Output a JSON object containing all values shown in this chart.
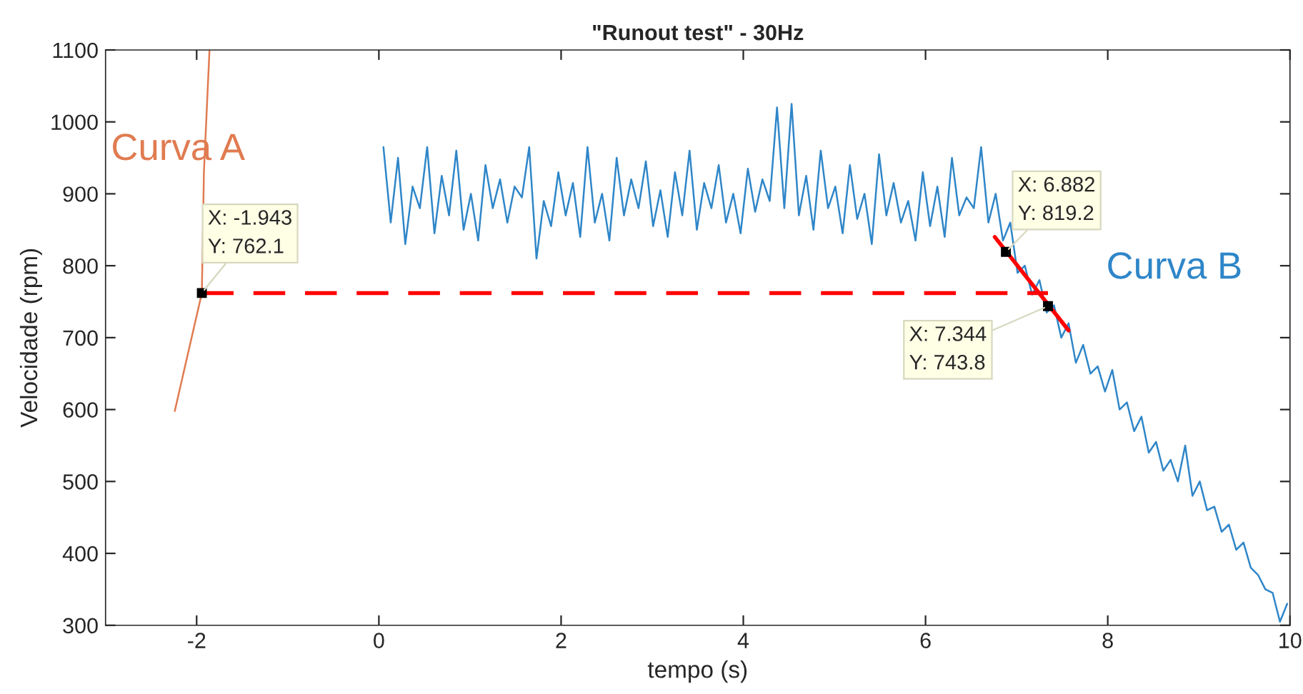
{
  "chart_data": {
    "type": "line",
    "title": "\"Runout test\" - 30Hz",
    "xlabel": "tempo (s)",
    "ylabel": "Velocidade (rpm)",
    "xlim": [
      -3,
      10
    ],
    "xticks": [
      -2,
      0,
      2,
      4,
      6,
      8,
      10
    ],
    "ylim": [
      300,
      1100
    ],
    "yticks": [
      300,
      400,
      500,
      600,
      700,
      800,
      900,
      1000,
      1100
    ],
    "grid": false,
    "legend": false,
    "marker": "none",
    "series": [
      {
        "name": "Curva A",
        "color": "#e07b50",
        "x": [
          -2.24,
          -1.943,
          -1.92,
          -1.859
        ],
        "values": [
          598,
          762,
          931,
          1100
        ]
      },
      {
        "name": "Curva B",
        "color": "#2f86c8",
        "x": [
          0.05,
          0.13,
          0.21,
          0.29,
          0.37,
          0.45,
          0.53,
          0.61,
          0.69,
          0.77,
          0.85,
          0.93,
          1.01,
          1.09,
          1.17,
          1.25,
          1.33,
          1.41,
          1.49,
          1.57,
          1.65,
          1.73,
          1.81,
          1.89,
          1.97,
          2.05,
          2.13,
          2.21,
          2.29,
          2.37,
          2.45,
          2.53,
          2.61,
          2.69,
          2.77,
          2.85,
          2.93,
          3.01,
          3.09,
          3.17,
          3.25,
          3.33,
          3.41,
          3.49,
          3.57,
          3.65,
          3.73,
          3.81,
          3.89,
          3.97,
          4.05,
          4.13,
          4.21,
          4.29,
          4.37,
          4.45,
          4.53,
          4.61,
          4.69,
          4.77,
          4.85,
          4.93,
          5.01,
          5.09,
          5.17,
          5.25,
          5.33,
          5.41,
          5.49,
          5.57,
          5.65,
          5.73,
          5.81,
          5.89,
          5.97,
          6.05,
          6.13,
          6.21,
          6.29,
          6.37,
          6.45,
          6.53,
          6.61,
          6.69,
          6.77,
          6.85,
          6.93,
          7.01,
          7.09,
          7.17,
          7.25,
          7.33,
          7.41,
          7.49,
          7.57,
          7.65,
          7.73,
          7.81,
          7.89,
          7.97,
          8.05,
          8.13,
          8.21,
          8.29,
          8.37,
          8.45,
          8.53,
          8.61,
          8.69,
          8.77,
          8.85,
          8.93,
          9.01,
          9.09,
          9.17,
          9.25,
          9.33,
          9.41,
          9.49,
          9.57,
          9.65,
          9.73,
          9.81,
          9.89,
          9.97
        ],
        "values": [
          965,
          860,
          950,
          830,
          910,
          880,
          965,
          845,
          925,
          870,
          960,
          850,
          900,
          835,
          940,
          880,
          920,
          860,
          910,
          895,
          965,
          810,
          890,
          855,
          930,
          870,
          915,
          840,
          965,
          860,
          900,
          835,
          950,
          870,
          920,
          880,
          945,
          855,
          905,
          840,
          930,
          870,
          960,
          850,
          915,
          880,
          940,
          860,
          900,
          845,
          935,
          875,
          920,
          890,
          1020,
          880,
          1025,
          870,
          925,
          850,
          960,
          880,
          910,
          845,
          940,
          865,
          900,
          830,
          955,
          870,
          915,
          860,
          890,
          835,
          930,
          855,
          910,
          840,
          950,
          870,
          895,
          880,
          965,
          860,
          900,
          835,
          860,
          790,
          800,
          760,
          780,
          735,
          745,
          700,
          720,
          665,
          690,
          650,
          660,
          625,
          655,
          600,
          610,
          570,
          590,
          540,
          555,
          515,
          530,
          500,
          550,
          480,
          500,
          460,
          465,
          430,
          440,
          405,
          415,
          380,
          370,
          350,
          345,
          305,
          330
        ]
      },
      {
        "color": "#ff0000",
        "line_style": "dashed",
        "x": [
          -1.943,
          7.344
        ],
        "values": [
          762,
          762
        ]
      },
      {
        "color": "#ff0000",
        "line_style": "solid",
        "x": [
          6.76,
          7.57
        ],
        "values": [
          840,
          710
        ]
      }
    ],
    "annotations": [
      {
        "text": "X: -1.943\nY: 762.1",
        "x": -1.943,
        "y": 762.1
      },
      {
        "text": "X: 6.882\nY: 819.2",
        "x": 6.882,
        "y": 819.2
      },
      {
        "text": "X: 7.344\nY: 743.8",
        "x": 7.344,
        "y": 743.8
      }
    ]
  }
}
